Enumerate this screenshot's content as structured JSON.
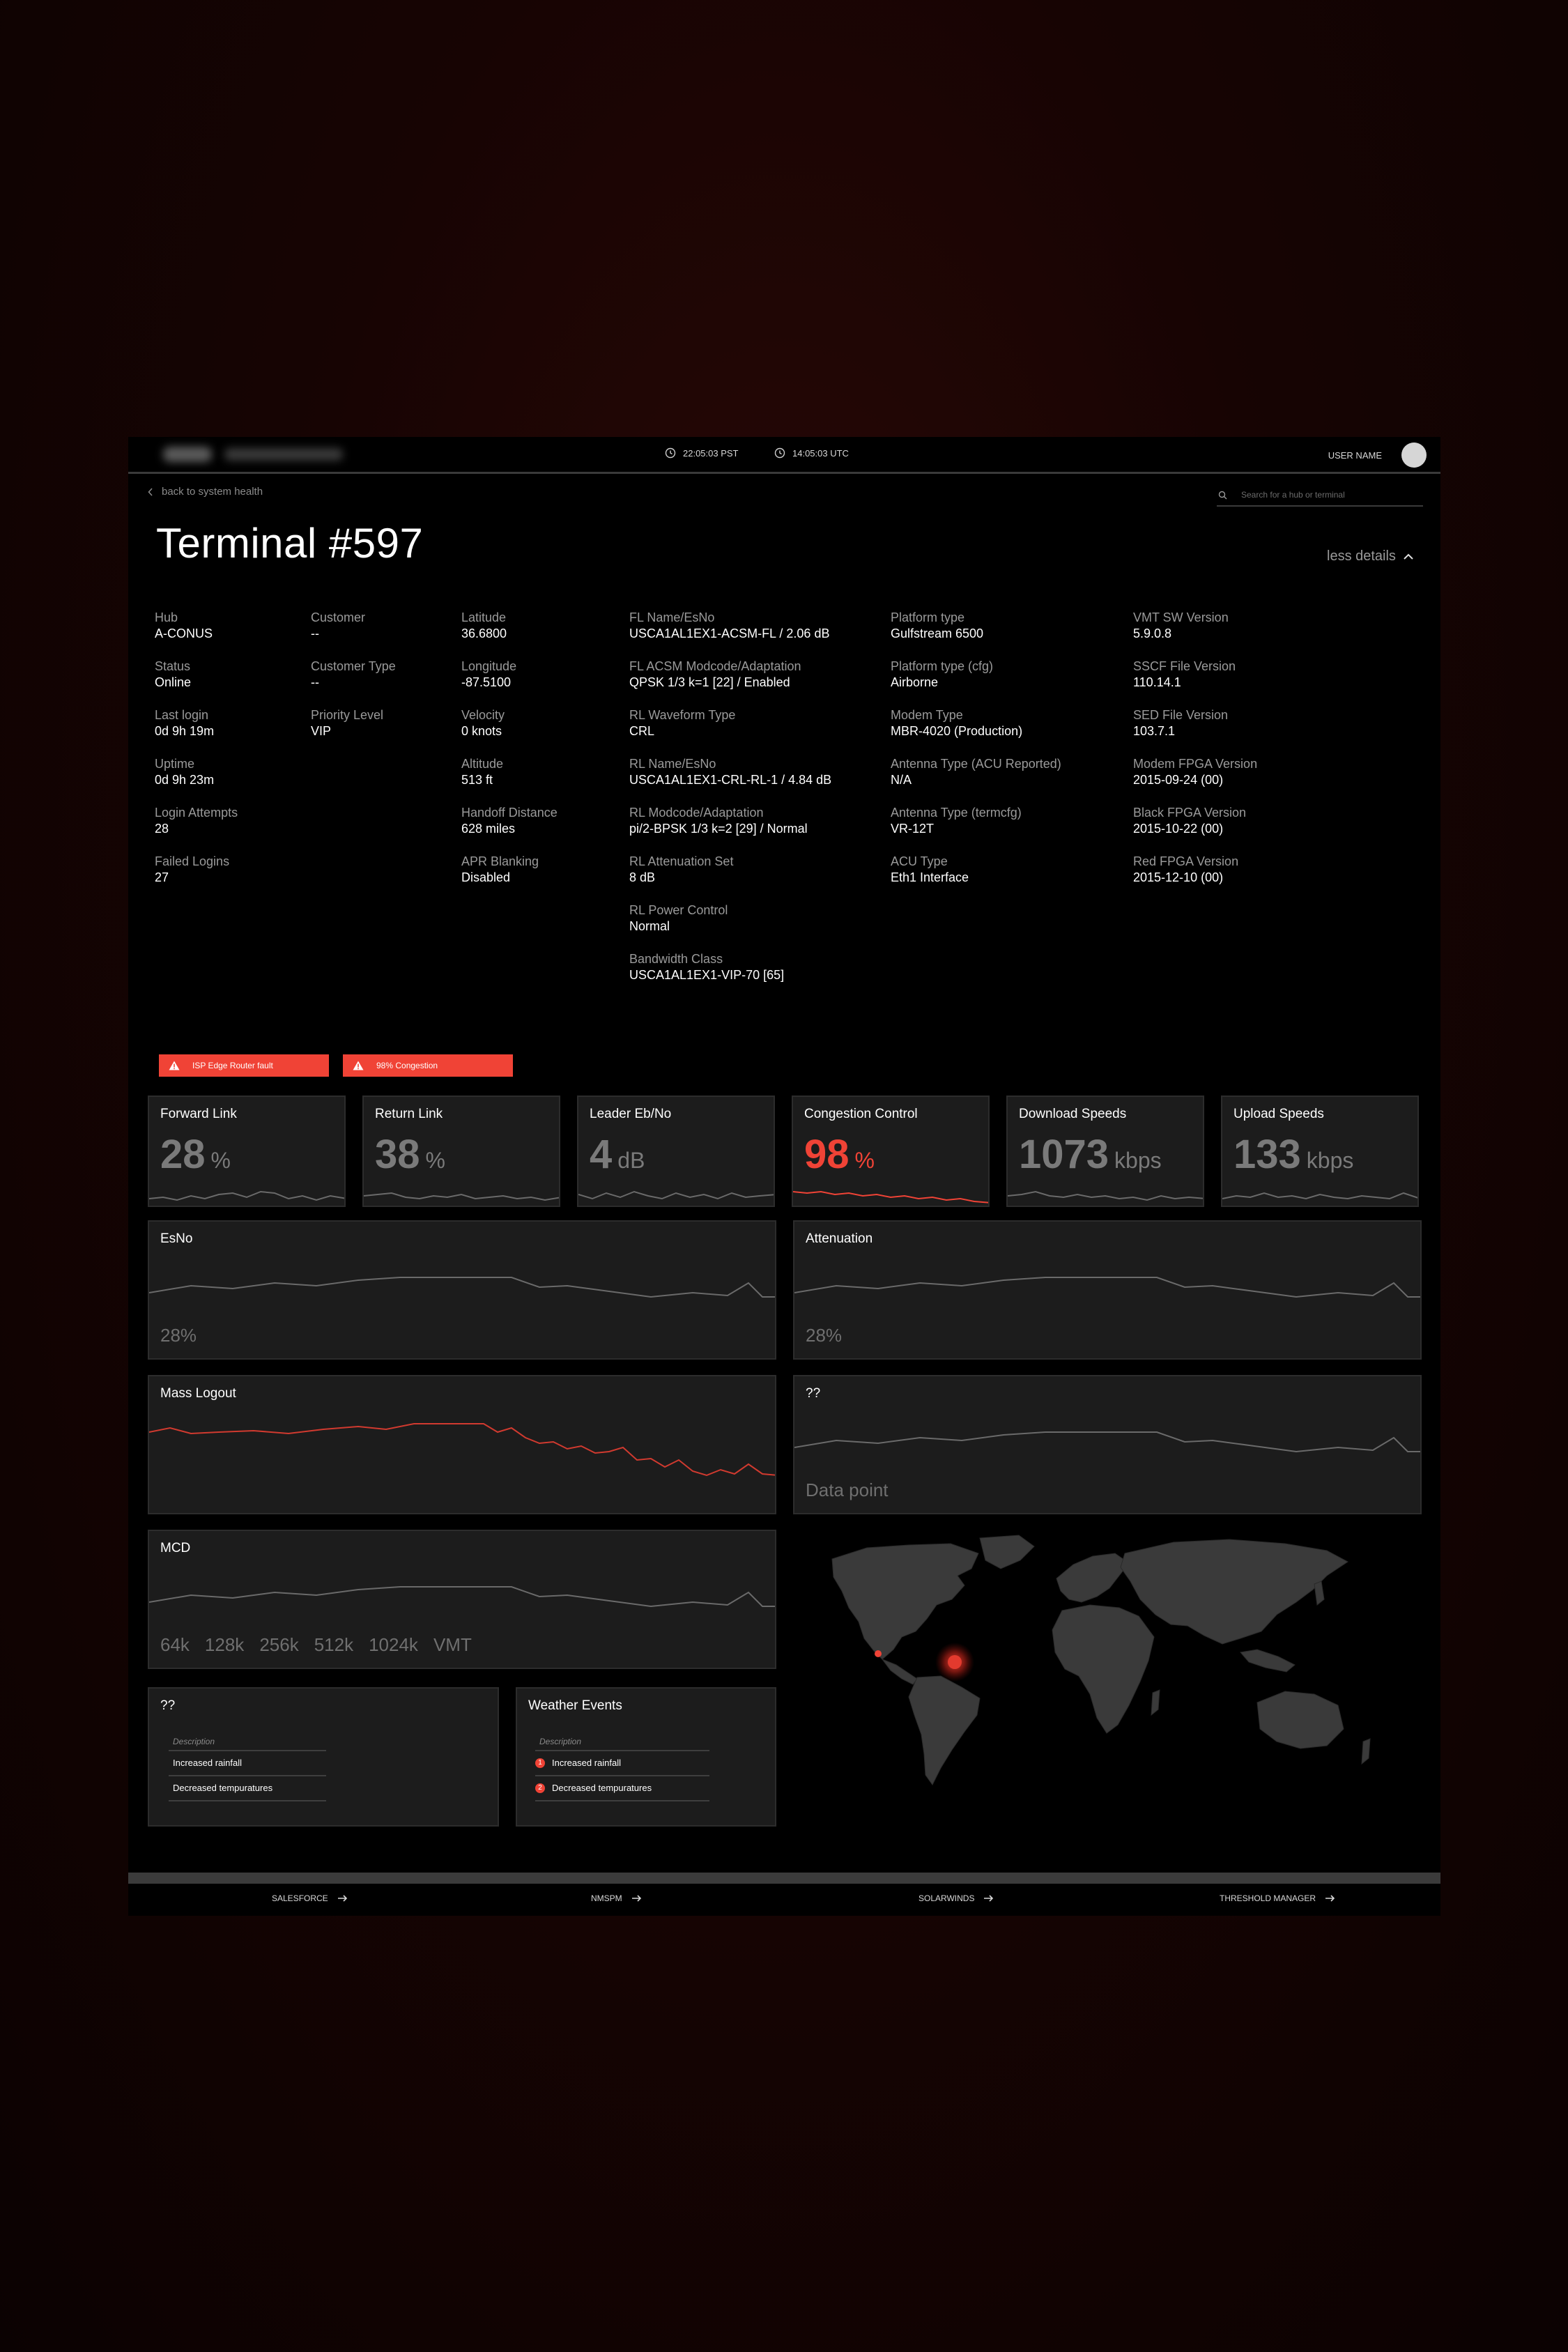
{
  "header": {
    "clock_local": "22:05:03 PST",
    "clock_utc": "14:05:03 UTC",
    "user_name": "USER NAME"
  },
  "nav": {
    "back_label": "back to system health",
    "search_placeholder": "Search for a hub or terminal"
  },
  "page": {
    "title": "Terminal #597",
    "toggle_details": "less details"
  },
  "details": {
    "col1": [
      {
        "label": "Hub",
        "value": "A-CONUS"
      },
      {
        "label": "Status",
        "value": "Online"
      },
      {
        "label": "Last login",
        "value": "0d 9h 19m"
      },
      {
        "label": "Uptime",
        "value": "0d 9h 23m"
      },
      {
        "label": "Login Attempts",
        "value": "28"
      },
      {
        "label": "Failed Logins",
        "value": "27"
      }
    ],
    "col2": [
      {
        "label": "Customer",
        "value": "--"
      },
      {
        "label": "Customer Type",
        "value": "--"
      },
      {
        "label": "Priority Level",
        "value": "VIP"
      }
    ],
    "col3": [
      {
        "label": "Latitude",
        "value": "36.6800"
      },
      {
        "label": "Longitude",
        "value": "-87.5100"
      },
      {
        "label": "Velocity",
        "value": "0 knots"
      },
      {
        "label": "Altitude",
        "value": "513 ft"
      },
      {
        "label": "Handoff Distance",
        "value": "628 miles"
      },
      {
        "label": "APR Blanking",
        "value": "Disabled"
      }
    ],
    "col4": [
      {
        "label": "FL Name/EsNo",
        "value": "USCA1AL1EX1-ACSM-FL / 2.06 dB"
      },
      {
        "label": "FL ACSM Modcode/Adaptation",
        "value": "QPSK 1/3 k=1 [22] / Enabled"
      },
      {
        "label": "RL Waveform Type",
        "value": "CRL"
      },
      {
        "label": "RL Name/EsNo",
        "value": "USCA1AL1EX1-CRL-RL-1 / 4.84 dB"
      },
      {
        "label": "RL Modcode/Adaptation",
        "value": "pi/2-BPSK 1/3 k=2 [29] / Normal"
      },
      {
        "label": "RL Attenuation Set",
        "value": "8 dB"
      },
      {
        "label": "RL Power Control",
        "value": "Normal"
      },
      {
        "label": "Bandwidth Class",
        "value": "USCA1AL1EX1-VIP-70 [65]"
      }
    ],
    "col5": [
      {
        "label": "Platform type",
        "value": "Gulfstream 6500"
      },
      {
        "label": "Platform type (cfg)",
        "value": "Airborne"
      },
      {
        "label": "Modem Type",
        "value": "MBR-4020 (Production)"
      },
      {
        "label": "Antenna Type (ACU Reported)",
        "value": "N/A"
      },
      {
        "label": "Antenna Type (termcfg)",
        "value": "VR-12T"
      },
      {
        "label": "ACU Type",
        "value": "Eth1 Interface"
      }
    ],
    "col6": [
      {
        "label": "VMT SW Version",
        "value": "5.9.0.8"
      },
      {
        "label": "SSCF File Version",
        "value": "110.14.1"
      },
      {
        "label": "SED File Version",
        "value": "103.7.1"
      },
      {
        "label": "Modem FPGA Version",
        "value": "2015-09-24 (00)"
      },
      {
        "label": "Black FPGA Version",
        "value": "2015-10-22 (00)"
      },
      {
        "label": "Red FPGA Version",
        "value": "2015-12-10 (00)"
      }
    ]
  },
  "alerts": [
    {
      "text": "ISP Edge Router fault"
    },
    {
      "text": "98% Congestion"
    }
  ],
  "metrics": [
    {
      "title": "Forward Link",
      "value": "28",
      "unit": "%",
      "alert": false
    },
    {
      "title": "Return Link",
      "value": "38",
      "unit": "%",
      "alert": false
    },
    {
      "title": "Leader Eb/No",
      "value": "4",
      "unit": "dB",
      "alert": false
    },
    {
      "title": "Congestion Control",
      "value": "98",
      "unit": "%",
      "alert": true
    },
    {
      "title": "Download Speeds",
      "value": "1073",
      "unit": "kbps",
      "alert": false
    },
    {
      "title": "Upload Speeds",
      "value": "133",
      "unit": "kbps",
      "alert": false
    }
  ],
  "panels": {
    "esno": {
      "title": "EsNo",
      "value": "28%"
    },
    "attenuation": {
      "title": "Attenuation",
      "value": "28%"
    },
    "mass_logout": {
      "title": "Mass Logout"
    },
    "unknown": {
      "title": "??",
      "value": "Data point"
    },
    "mcd": {
      "title": "MCD",
      "ticks": [
        "64k",
        "128k",
        "256k",
        "512k",
        "1024k",
        "VMT"
      ]
    }
  },
  "tables": {
    "unknown": {
      "title": "??",
      "header": "Description",
      "rows": [
        "Increased rainfall",
        "Decreased tempuratures"
      ]
    },
    "weather": {
      "title": "Weather Events",
      "header": "Description",
      "rows": [
        {
          "num": "1",
          "text": "Increased rainfall"
        },
        {
          "num": "2",
          "text": "Decreased tempuratures"
        }
      ]
    }
  },
  "footer": {
    "links": [
      "SALESFORCE",
      "NMSPM",
      "SOLARWINDS",
      "THRESHOLD MANAGER"
    ]
  },
  "colors": {
    "accent": "#f04336",
    "card": "#1c1c1c",
    "background": "#000000"
  }
}
